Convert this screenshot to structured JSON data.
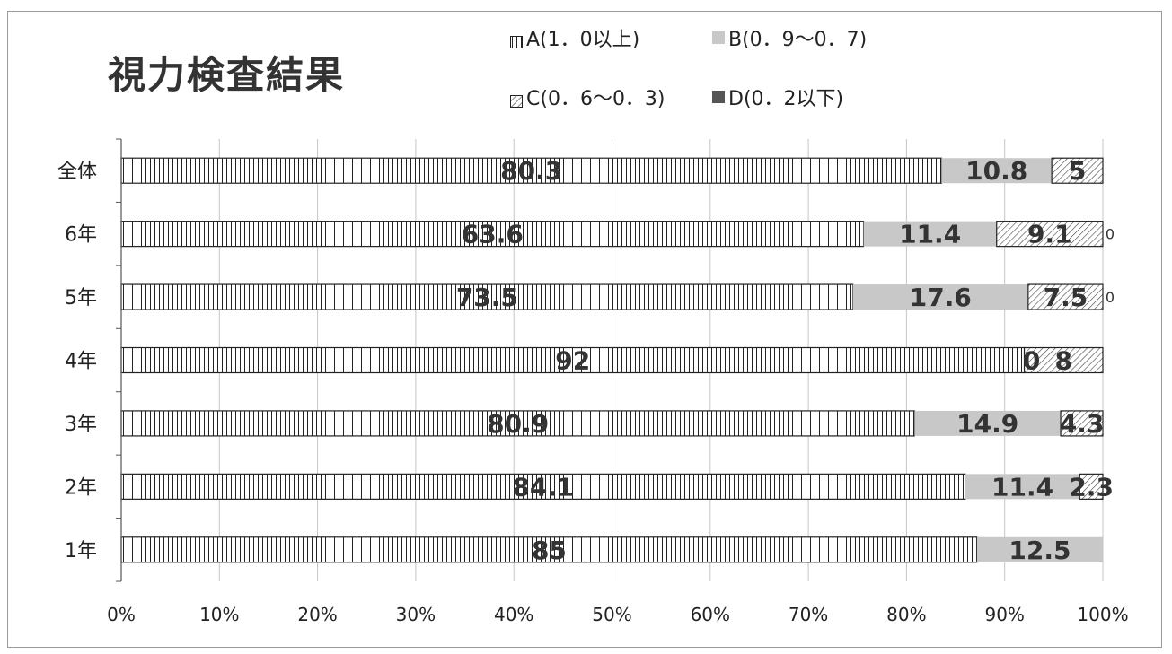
{
  "chart_data": {
    "type": "bar",
    "orientation": "horizontal",
    "stacked": "percent",
    "title": "視力検査結果",
    "categories": [
      "全体",
      "6年",
      "5年",
      "4年",
      "3年",
      "2年",
      "1年"
    ],
    "series": [
      {
        "name": "A(1．0以上)",
        "values": [
          80.3,
          63.6,
          73.5,
          92,
          80.9,
          84.1,
          85
        ],
        "labels": [
          "80.3",
          "63.6",
          "73.5",
          "92",
          "80.9",
          "84.1",
          "85"
        ]
      },
      {
        "name": "B(0．9～0．7)",
        "values": [
          10.8,
          11.4,
          17.6,
          0,
          14.9,
          11.4,
          12.5
        ],
        "labels": [
          "10.8",
          "11.4",
          "17.6",
          "0",
          "14.9",
          "11.4",
          "12.5"
        ]
      },
      {
        "name": "C(0．6～0．3)",
        "values": [
          5,
          9.1,
          7.5,
          8,
          4.3,
          2.3,
          0
        ],
        "labels": [
          "5",
          "9.1",
          "7.5",
          "8",
          "4.3",
          "2.3",
          ""
        ]
      },
      {
        "name": "D(0．2以下)",
        "values": [
          0,
          0,
          0,
          0,
          0,
          0,
          0
        ],
        "labels": [
          "",
          "0",
          "0",
          "",
          "",
          "",
          ""
        ]
      }
    ],
    "x_ticks": [
      "0%",
      "10%",
      "20%",
      "30%",
      "40%",
      "50%",
      "60%",
      "70%",
      "80%",
      "90%",
      "100%"
    ],
    "xlim": [
      0,
      100
    ],
    "grid": "vertical",
    "legend_position": "top-right",
    "colors": {
      "A": "#ffffff",
      "B": "#c8c8c8",
      "C": "#e0e0e0",
      "D": "#555555"
    }
  }
}
